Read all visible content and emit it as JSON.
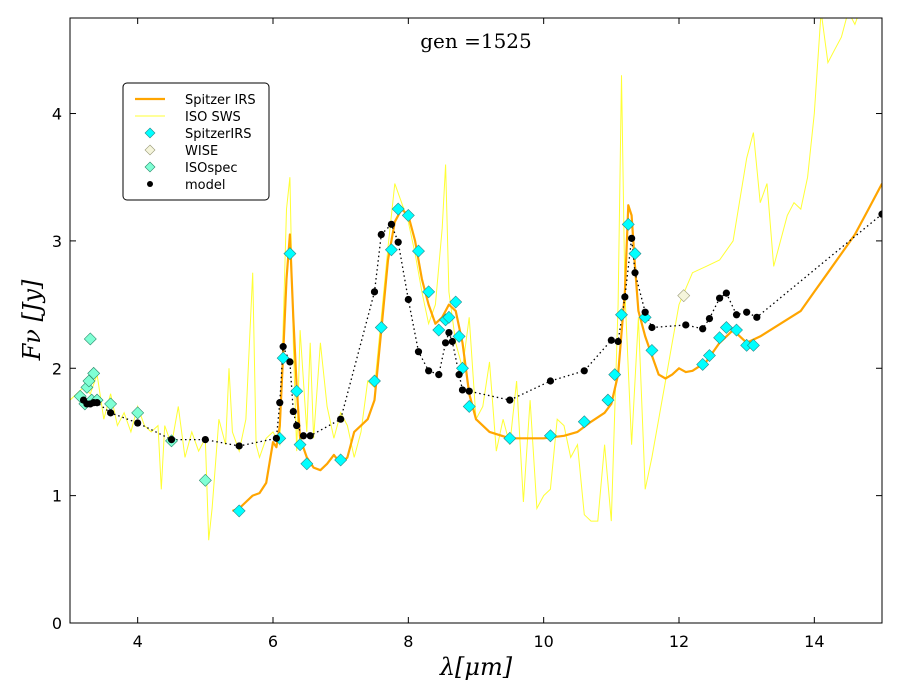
{
  "chart_data": {
    "type": "line",
    "title": "gen =1525",
    "xlabel": "λ[μm]",
    "ylabel": "Fν [Jy]",
    "xlim": [
      3,
      15
    ],
    "ylim": [
      0,
      4.75
    ],
    "xticks": [
      4,
      6,
      8,
      10,
      12,
      14
    ],
    "yticks": [
      0,
      1,
      2,
      3,
      4
    ],
    "legend_position": "upper-left",
    "colors": {
      "spitzer_irs": "#FFA500",
      "iso_sws": "#FFFF33",
      "spitzer_irs_points": "#00FFFF",
      "wise_points": "#F5F5DC",
      "isospec_points": "#7FFFD4",
      "model": "#000000"
    },
    "series": [
      {
        "name": "Spitzer IRS",
        "kind": "line",
        "x": [
          5.4,
          5.5,
          5.6,
          5.7,
          5.8,
          5.9,
          6.0,
          6.05,
          6.1,
          6.15,
          6.2,
          6.25,
          6.3,
          6.35,
          6.4,
          6.5,
          6.6,
          6.7,
          6.8,
          6.9,
          7.0,
          7.1,
          7.2,
          7.3,
          7.4,
          7.5,
          7.6,
          7.7,
          7.8,
          7.9,
          8.0,
          8.1,
          8.2,
          8.3,
          8.4,
          8.5,
          8.6,
          8.7,
          8.8,
          8.9,
          9.0,
          9.2,
          9.5,
          10.0,
          10.3,
          10.5,
          10.7,
          10.9,
          11.0,
          11.1,
          11.2,
          11.25,
          11.3,
          11.35,
          11.4,
          11.5,
          11.6,
          11.7,
          11.8,
          11.9,
          12.0,
          12.1,
          12.2,
          12.4,
          12.6,
          12.8,
          13.0,
          13.2,
          13.5,
          13.8,
          14.0,
          14.2,
          14.4,
          14.6,
          14.8,
          15.0
        ],
        "y": [
          0.88,
          0.9,
          0.95,
          1.0,
          1.02,
          1.1,
          1.42,
          1.38,
          1.55,
          2.1,
          2.7,
          3.05,
          2.4,
          1.85,
          1.45,
          1.3,
          1.22,
          1.2,
          1.25,
          1.32,
          1.25,
          1.3,
          1.5,
          1.55,
          1.6,
          1.75,
          2.3,
          2.85,
          3.15,
          3.25,
          3.2,
          3.0,
          2.7,
          2.5,
          2.35,
          2.4,
          2.5,
          2.45,
          2.2,
          1.8,
          1.6,
          1.5,
          1.45,
          1.45,
          1.47,
          1.5,
          1.58,
          1.65,
          1.72,
          1.95,
          2.6,
          3.28,
          3.2,
          2.8,
          2.45,
          2.25,
          2.1,
          1.95,
          1.92,
          1.95,
          2.0,
          1.97,
          1.98,
          2.05,
          2.2,
          2.3,
          2.2,
          2.25,
          2.35,
          2.45,
          2.6,
          2.75,
          2.9,
          3.05,
          3.25,
          3.45
        ]
      },
      {
        "name": "ISO SWS",
        "kind": "line",
        "x": [
          3.0,
          3.1,
          3.2,
          3.3,
          3.4,
          3.5,
          3.6,
          3.7,
          3.8,
          3.9,
          4.0,
          4.1,
          4.2,
          4.3,
          4.35,
          4.4,
          4.5,
          4.6,
          4.7,
          4.8,
          4.9,
          5.0,
          5.05,
          5.1,
          5.2,
          5.3,
          5.35,
          5.4,
          5.5,
          5.6,
          5.7,
          5.75,
          5.8,
          5.9,
          6.0,
          6.1,
          6.2,
          6.25,
          6.3,
          6.35,
          6.4,
          6.5,
          6.55,
          6.6,
          6.7,
          6.8,
          6.9,
          7.0,
          7.1,
          7.2,
          7.3,
          7.4,
          7.5,
          7.6,
          7.7,
          7.8,
          7.9,
          8.0,
          8.1,
          8.2,
          8.3,
          8.4,
          8.5,
          8.55,
          8.6,
          8.7,
          8.8,
          8.9,
          9.0,
          9.1,
          9.2,
          9.3,
          9.4,
          9.5,
          9.6,
          9.7,
          9.8,
          9.9,
          10.0,
          10.1,
          10.2,
          10.3,
          10.4,
          10.5,
          10.6,
          10.7,
          10.8,
          10.9,
          11.0,
          11.1,
          11.15,
          11.2,
          11.3,
          11.4,
          11.5,
          11.6,
          11.7,
          11.8,
          11.9,
          12.0,
          12.2,
          12.4,
          12.6,
          12.8,
          13.0,
          13.1,
          13.2,
          13.3,
          13.4,
          13.5,
          13.6,
          13.7,
          13.8,
          13.9,
          14.0,
          14.1,
          14.2,
          14.3,
          14.4,
          14.5,
          14.6,
          14.7,
          14.8,
          14.9,
          15.0
        ],
        "y": [
          1.75,
          1.8,
          1.85,
          1.8,
          1.95,
          1.6,
          1.8,
          1.55,
          1.65,
          1.5,
          1.7,
          1.55,
          1.5,
          1.55,
          1.05,
          1.55,
          1.4,
          1.7,
          1.3,
          1.5,
          1.35,
          1.45,
          0.65,
          0.9,
          1.6,
          1.4,
          2.0,
          1.5,
          1.35,
          1.6,
          2.75,
          1.4,
          1.3,
          1.45,
          1.5,
          1.4,
          3.25,
          3.5,
          2.2,
          1.35,
          2.3,
          1.5,
          2.2,
          1.45,
          2.2,
          1.7,
          1.45,
          1.65,
          1.55,
          1.3,
          1.5,
          1.9,
          1.85,
          2.4,
          2.95,
          3.45,
          3.3,
          3.15,
          2.9,
          2.6,
          2.35,
          2.5,
          3.1,
          3.6,
          2.6,
          2.2,
          2.0,
          2.4,
          1.6,
          1.7,
          2.05,
          1.35,
          1.6,
          1.4,
          1.9,
          0.95,
          1.75,
          0.9,
          1.0,
          1.05,
          1.6,
          1.55,
          1.3,
          1.4,
          0.85,
          0.8,
          0.8,
          1.4,
          0.8,
          2.5,
          4.3,
          2.6,
          1.4,
          2.4,
          1.05,
          1.3,
          1.6,
          1.9,
          2.2,
          2.5,
          2.75,
          2.8,
          2.85,
          3.0,
          3.65,
          3.85,
          3.3,
          3.45,
          2.8,
          3.0,
          3.2,
          3.3,
          3.25,
          3.5,
          4.0,
          4.8,
          4.4,
          4.5,
          4.6,
          4.8,
          4.7,
          4.85,
          4.9,
          4.95,
          5.0
        ]
      },
      {
        "name": "SpitzerIRS",
        "kind": "markers",
        "x": [
          5.5,
          6.1,
          6.15,
          6.25,
          6.35,
          6.4,
          6.5,
          7.0,
          7.5,
          7.6,
          7.75,
          7.85,
          8.0,
          8.15,
          8.3,
          8.45,
          8.55,
          8.6,
          8.7,
          8.75,
          8.8,
          8.9,
          9.5,
          10.1,
          10.6,
          10.95,
          11.05,
          11.15,
          11.25,
          11.35,
          11.5,
          11.6,
          12.35,
          12.45,
          12.6,
          12.7,
          12.85,
          13.0,
          13.1
        ],
        "y": [
          0.88,
          1.45,
          2.08,
          2.9,
          1.82,
          1.4,
          1.25,
          1.28,
          1.9,
          2.32,
          2.93,
          3.25,
          3.2,
          2.92,
          2.6,
          2.3,
          2.38,
          2.4,
          2.52,
          2.25,
          2.0,
          1.7,
          1.45,
          1.47,
          1.58,
          1.75,
          1.95,
          2.42,
          3.13,
          2.9,
          2.4,
          2.14,
          2.03,
          2.1,
          2.24,
          2.32,
          2.3,
          2.18,
          2.18
        ]
      },
      {
        "name": "WISE",
        "kind": "markers",
        "x": [
          12.07
        ],
        "y": [
          2.57
        ]
      },
      {
        "name": "ISOspec",
        "kind": "markers",
        "x": [
          3.15,
          3.22,
          3.25,
          3.28,
          3.3,
          3.32,
          3.35,
          3.4,
          3.6,
          4.0,
          4.5,
          5.0
        ],
        "y": [
          1.78,
          1.72,
          1.85,
          1.9,
          2.23,
          1.75,
          1.96,
          1.75,
          1.72,
          1.65,
          1.43,
          1.12
        ]
      },
      {
        "name": "model",
        "kind": "dotted-markers",
        "x": [
          3.2,
          3.25,
          3.3,
          3.35,
          3.4,
          3.6,
          4.0,
          4.5,
          5.0,
          5.5,
          6.05,
          6.1,
          6.15,
          6.25,
          6.3,
          6.35,
          6.45,
          6.55,
          7.0,
          7.5,
          7.6,
          7.75,
          7.85,
          8.0,
          8.15,
          8.3,
          8.45,
          8.55,
          8.6,
          8.65,
          8.75,
          8.8,
          8.9,
          9.5,
          10.1,
          10.6,
          11.0,
          11.1,
          11.2,
          11.3,
          11.35,
          11.5,
          11.6,
          12.1,
          12.35,
          12.45,
          12.6,
          12.7,
          12.85,
          13.0,
          13.15,
          15.0
        ],
        "y": [
          1.75,
          1.72,
          1.72,
          1.73,
          1.73,
          1.65,
          1.57,
          1.44,
          1.44,
          1.39,
          1.45,
          1.73,
          2.17,
          2.05,
          1.66,
          1.55,
          1.47,
          1.47,
          1.6,
          2.6,
          3.05,
          3.13,
          2.99,
          2.54,
          2.13,
          1.98,
          1.95,
          2.2,
          2.28,
          2.21,
          1.95,
          1.83,
          1.82,
          1.75,
          1.9,
          1.98,
          2.22,
          2.21,
          2.56,
          3.02,
          2.75,
          2.44,
          2.32,
          2.34,
          2.31,
          2.39,
          2.55,
          2.59,
          2.42,
          2.44,
          2.4,
          3.21
        ]
      }
    ],
    "legend": [
      "Spitzer IRS",
      "ISO SWS",
      "SpitzerIRS",
      "WISE",
      "ISOspec",
      "model"
    ]
  }
}
